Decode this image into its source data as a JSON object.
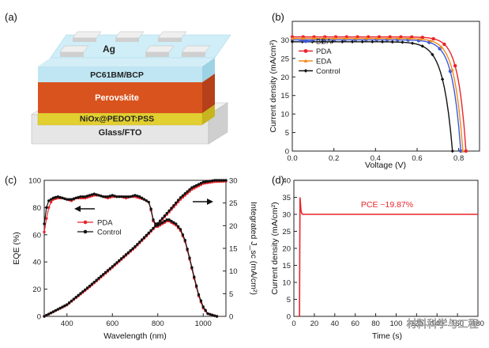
{
  "panels": {
    "a": {
      "label": "(a)",
      "layers": {
        "electrode": "Ag",
        "etl": "PC61BM/BCP",
        "absorber": "Perovskite",
        "htl": "NiOx@PEDOT:PSS",
        "substrate": "Glass/FTO"
      },
      "colors": {
        "electrode": "#dcdcdc",
        "etl": "#bfe6f2",
        "absorber": "#d9531e",
        "htl": "#e6d23a",
        "substrate": "#e8e8e8"
      }
    },
    "b": {
      "label": "(b)"
    },
    "c": {
      "label": "(c)",
      "annotation_arrows": [
        "left",
        "right"
      ]
    },
    "d": {
      "label": "(d)",
      "annotation": "PCE ~19.87%"
    }
  },
  "watermark": "材料科学与工程",
  "chart_data": [
    {
      "id": "b",
      "type": "line",
      "xlabel": "Voltage (V)",
      "ylabel": "Current density (mA/cm²)",
      "xlim": [
        0.0,
        0.9
      ],
      "ylim": [
        0,
        35
      ],
      "xticks": [
        "0.0",
        "0.2",
        "0.4",
        "0.6",
        "0.8"
      ],
      "yticks": [
        "0",
        "5",
        "10",
        "15",
        "20",
        "25",
        "30"
      ],
      "legend_position": "top-left",
      "series": [
        {
          "name": "BDA",
          "color": "#3a5bd9",
          "marker": "circle",
          "jsc": 30.0,
          "voc": 0.81,
          "k": 0.04
        },
        {
          "name": "PDA",
          "color": "#e8242a",
          "marker": "circle",
          "jsc": 30.8,
          "voc": 0.835,
          "k": 0.038
        },
        {
          "name": "EDA",
          "color": "#f08a1c",
          "marker": "triangle",
          "jsc": 30.4,
          "voc": 0.82,
          "k": 0.04
        },
        {
          "name": "Control",
          "color": "#111111",
          "marker": "diamond",
          "jsc": 29.5,
          "voc": 0.77,
          "k": 0.045
        }
      ]
    },
    {
      "id": "c",
      "type": "line",
      "xlabel": "Wavelength (nm)",
      "ylabel": "EQE (%)",
      "y2label": "Integrated J_sc (mA/cm²)",
      "xlim": [
        300,
        1100
      ],
      "ylim": [
        0,
        100
      ],
      "y2lim": [
        0,
        30
      ],
      "xticks": [
        "400",
        "600",
        "800",
        "1000"
      ],
      "yticks": [
        "0",
        "20",
        "40",
        "60",
        "80",
        "100"
      ],
      "y2ticks": [
        "0",
        "5",
        "10",
        "15",
        "20",
        "25",
        "30"
      ],
      "legend_position": "center",
      "series": [
        {
          "name": "PDA",
          "color": "#e8242a",
          "x": [
            300,
            310,
            320,
            330,
            340,
            360,
            380,
            400,
            420,
            440,
            460,
            480,
            500,
            520,
            540,
            560,
            580,
            600,
            620,
            640,
            660,
            680,
            700,
            720,
            740,
            760,
            770,
            780,
            790,
            800,
            810,
            820,
            830,
            840,
            850,
            860,
            870,
            880,
            890,
            900,
            920,
            940,
            960,
            980,
            1000,
            1020,
            1040,
            1060
          ],
          "y": [
            62,
            72,
            80,
            84,
            86,
            87,
            87,
            86,
            85,
            87,
            87,
            87,
            88,
            89,
            89,
            88,
            87,
            88,
            88,
            88,
            87,
            88,
            88,
            87,
            86,
            84,
            78,
            70,
            67,
            66,
            67,
            68,
            69,
            70,
            70,
            69,
            68,
            67,
            65,
            63,
            55,
            42,
            28,
            15,
            6,
            2,
            1,
            0
          ],
          "integrated_x": [
            300,
            400,
            500,
            600,
            700,
            760,
            800,
            850,
            900,
            950,
            1000,
            1050,
            1100
          ],
          "integrated_y": [
            0,
            2.5,
            6.5,
            10.8,
            15.2,
            18.2,
            20.3,
            23.0,
            25.8,
            28.0,
            29.3,
            29.7,
            29.8
          ]
        },
        {
          "name": "Control",
          "color": "#111111",
          "x": [
            300,
            310,
            320,
            330,
            340,
            360,
            380,
            400,
            420,
            440,
            460,
            480,
            500,
            520,
            540,
            560,
            580,
            600,
            620,
            640,
            660,
            680,
            700,
            720,
            740,
            760,
            770,
            780,
            790,
            800,
            810,
            820,
            830,
            840,
            850,
            860,
            870,
            880,
            890,
            900,
            920,
            940,
            960,
            980,
            1000,
            1020,
            1040,
            1060
          ],
          "y": [
            68,
            80,
            85,
            86,
            87,
            88,
            87,
            86,
            86,
            87,
            88,
            88,
            89,
            90,
            89,
            88,
            88,
            89,
            88,
            88,
            88,
            88,
            89,
            88,
            86,
            84,
            79,
            71,
            68,
            67,
            68,
            69,
            70,
            71,
            71,
            70,
            69,
            68,
            66,
            64,
            56,
            43,
            29,
            16,
            7,
            2,
            1,
            0
          ],
          "integrated_x": [
            300,
            400,
            500,
            600,
            700,
            760,
            800,
            850,
            900,
            950,
            1000,
            1050,
            1100
          ],
          "integrated_y": [
            0,
            2.6,
            6.7,
            11.0,
            15.4,
            18.4,
            20.5,
            23.3,
            26.2,
            28.4,
            29.6,
            30.0,
            30.0
          ]
        }
      ]
    },
    {
      "id": "d",
      "type": "line",
      "xlabel": "Time (s)",
      "ylabel": "Current density (mA/cm²)",
      "xlim": [
        0,
        180
      ],
      "ylim": [
        0,
        40
      ],
      "xticks": [
        "0",
        "20",
        "40",
        "60",
        "80",
        "100",
        "120",
        "140",
        "160",
        "180"
      ],
      "yticks": [
        "0",
        "5",
        "10",
        "15",
        "20",
        "25",
        "30",
        "35",
        "40"
      ],
      "series": [
        {
          "name": "",
          "color": "#e8242a",
          "x": [
            5,
            5.5,
            6,
            7,
            8,
            9,
            10,
            15,
            30,
            60,
            90,
            120,
            150,
            180
          ],
          "y": [
            0,
            0,
            35,
            31,
            30.1,
            30,
            30,
            30,
            30,
            30,
            30,
            30,
            30,
            30
          ]
        }
      ]
    }
  ]
}
